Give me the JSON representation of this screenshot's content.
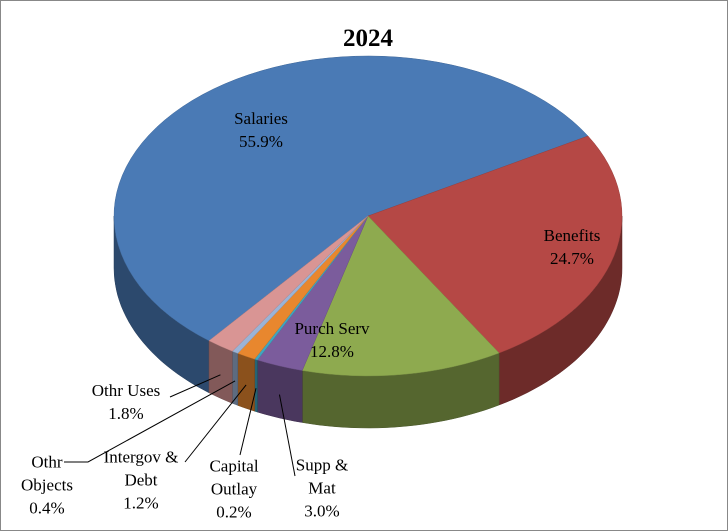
{
  "chart_data": {
    "type": "pie",
    "title": "2024",
    "categories": [
      "Salaries",
      "Benefits",
      "Purch Serv",
      "Supp & Mat",
      "Capital Outlay",
      "Intergov & Debt",
      "Othr Objects",
      "Othr Uses"
    ],
    "values": [
      55.9,
      24.7,
      12.8,
      3.0,
      0.2,
      1.2,
      0.4,
      1.8
    ],
    "value_labels": [
      "55.9%",
      "24.7%",
      "12.8%",
      "3.0%",
      "0.2%",
      "1.2%",
      "0.4%",
      "1.8%"
    ],
    "colors": [
      "#4a7ab5",
      "#b54845",
      "#8eaa4f",
      "#7b5c9c",
      "#3fa5c0",
      "#e8872e",
      "#9bb3d6",
      "#d99594"
    ]
  }
}
